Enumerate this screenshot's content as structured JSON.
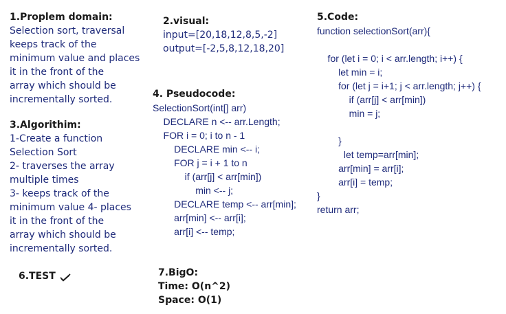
{
  "problem": {
    "title": "1.Proplem domain:",
    "lines": [
      "Selection sort, traversal",
      "keeps track of the",
      "minimum value and places",
      "it in the front of the",
      "array which should be",
      "incrementally sorted."
    ]
  },
  "algorithm": {
    "title": "3.Algorithim:",
    "lines": [
      "1-Create a function",
      "Selection Sort",
      "2- traverses the array",
      "multiple times",
      "3- keeps track of the",
      "minimum value 4- places",
      "it in the front of the",
      "array which should be",
      "incrementally sorted."
    ]
  },
  "test": {
    "title": "6.TEST",
    "icon": "checkmark-icon"
  },
  "visual": {
    "title": "2.visual:",
    "input": "input=[20,18,12,8,5,-2]",
    "output": "output=[-2,5,8,12,18,20]"
  },
  "pseudocode": {
    "title": "4. Pseudocode:",
    "lines": [
      "SelectionSort(int[] arr)",
      "    DECLARE n <-- arr.Length;",
      "    FOR i = 0; i to n - 1",
      "        DECLARE min <-- i;",
      "        FOR j = i + 1 to n",
      "            if (arr[j] < arr[min])",
      "                min <-- j;",
      "        DECLARE temp <-- arr[min];",
      "        arr[min] <-- arr[i];",
      "        arr[i] <-- temp;"
    ]
  },
  "bigo": {
    "title": "7.BigO:",
    "time": "Time: O(n^2)",
    "space": "Space: O(1)"
  },
  "code": {
    "title": "5.Code:",
    "lines": [
      "function selectionSort(arr){",
      "",
      "    for (let i = 0; i < arr.length; i++) {",
      "        let min = i;",
      "        for (let j = i+1; j < arr.length; j++) {",
      "            if (arr[j] < arr[min])",
      "            min = j;",
      "",
      "        }",
      "          let temp=arr[min];",
      "        arr[min] = arr[i];",
      "        arr[i] = temp;",
      "}",
      "return arr;"
    ]
  }
}
